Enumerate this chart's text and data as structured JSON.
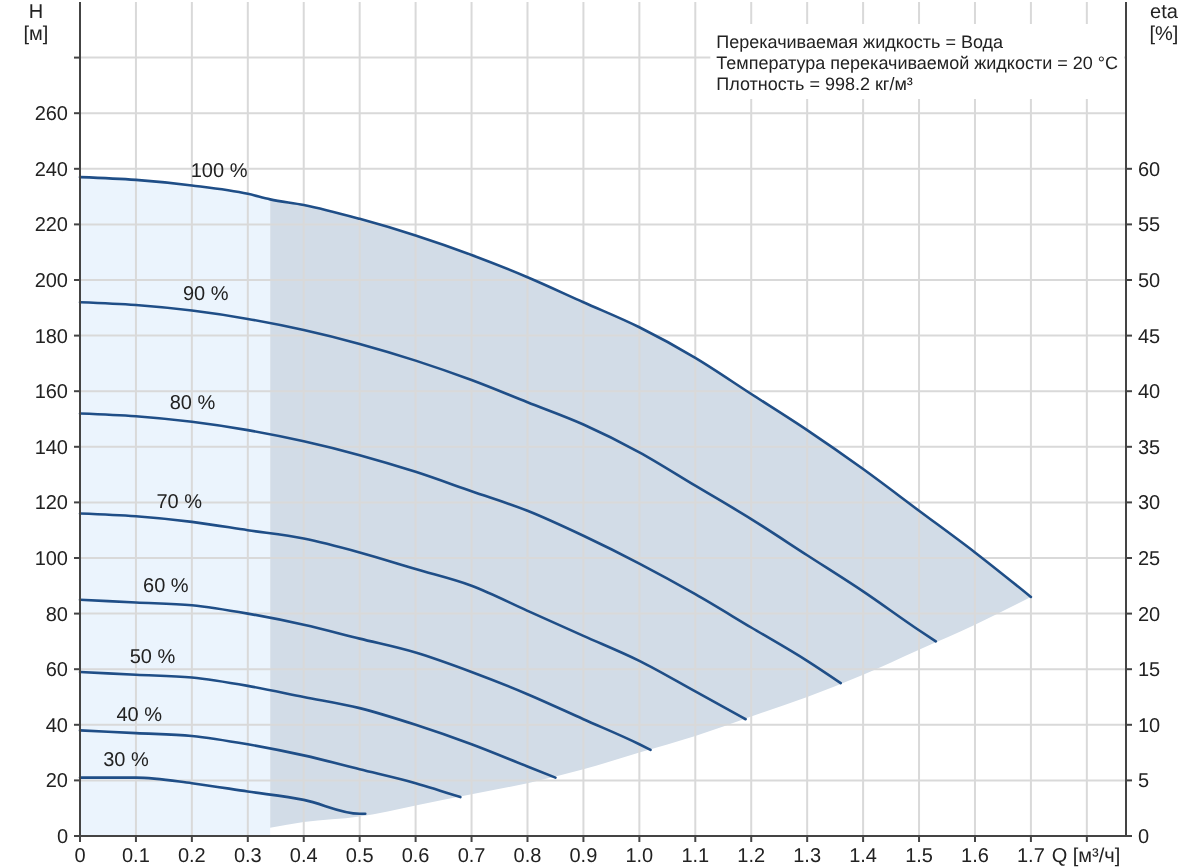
{
  "chart_data": {
    "type": "line",
    "xlabel": "Q [м³/ч]",
    "ylabel": "H\n[м]",
    "y2label": "eta\n[%]",
    "xlim": [
      0,
      1.87
    ],
    "ylim": [
      0,
      300
    ],
    "y2lim": [
      0,
      75
    ],
    "xticks": [
      0,
      0.1,
      0.2,
      0.3,
      0.4,
      0.5,
      0.6,
      0.7,
      0.8,
      0.9,
      {
        "value": 1,
        "label": "1.0"
      },
      1.1,
      1.2,
      1.3,
      1.4,
      1.5,
      1.6,
      1.7,
      {
        "value": 1.8,
        "label": null
      }
    ],
    "yticks": [
      0,
      20,
      40,
      60,
      80,
      100,
      120,
      140,
      160,
      180,
      200,
      220,
      240,
      260,
      {
        "value": 280,
        "label": null
      }
    ],
    "y2ticks": [
      0,
      5,
      10,
      15,
      20,
      25,
      30,
      35,
      40,
      45,
      50,
      55,
      60
    ],
    "grid": true,
    "line_style": "solid",
    "series": [
      {
        "type": "area",
        "color": "#ebf4fd",
        "x": [
          0,
          0.1,
          0.2,
          0.3,
          0.34
        ],
        "values": [
          237,
          236,
          234,
          231,
          229
        ]
      },
      {
        "name": "100 %",
        "color": "#1f4e87",
        "x": [
          0,
          0.1,
          0.2,
          0.3,
          0.34,
          0.4,
          0.5,
          0.6,
          0.7,
          0.8,
          0.9,
          1.0,
          1.1,
          1.2,
          1.3,
          1.4,
          1.5,
          1.6,
          1.7
        ],
        "values": [
          237,
          236,
          234,
          231,
          229,
          227,
          222,
          216,
          209,
          201,
          192,
          183,
          172,
          159,
          146,
          132,
          117,
          102,
          86
        ],
        "lower": [
          null,
          null,
          null,
          null,
          3,
          5,
          7,
          11,
          15,
          19,
          24,
          30,
          36,
          43,
          50,
          58,
          67,
          76,
          86
        ],
        "upper": [
          null,
          null,
          null,
          null,
          229,
          227,
          222,
          216,
          209,
          201,
          192,
          183,
          172,
          159,
          146,
          132,
          117,
          102,
          86
        ]
      },
      {
        "name": "90 %",
        "color": "#1f4e87",
        "x": [
          0,
          0.1,
          0.2,
          0.3,
          0.4,
          0.5,
          0.6,
          0.7,
          0.8,
          0.9,
          1.0,
          1.1,
          1.2,
          1.3,
          1.4,
          1.5,
          1.53
        ],
        "values": [
          192,
          191,
          189,
          186,
          182,
          177,
          171,
          164,
          156,
          148,
          138,
          126,
          114,
          101,
          88,
          74,
          70
        ]
      },
      {
        "name": "80 %",
        "color": "#1f4e87",
        "x": [
          0,
          0.1,
          0.2,
          0.3,
          0.4,
          0.5,
          0.6,
          0.7,
          0.8,
          0.9,
          1.0,
          1.1,
          1.2,
          1.3,
          1.36
        ],
        "values": [
          152,
          151,
          149,
          146,
          142,
          137,
          131,
          124,
          117,
          108,
          98,
          87,
          75,
          63,
          55
        ]
      },
      {
        "name": "70 %",
        "color": "#1f4e87",
        "x": [
          0,
          0.1,
          0.2,
          0.3,
          0.4,
          0.5,
          0.6,
          0.7,
          0.8,
          0.9,
          1.0,
          1.1,
          1.19
        ],
        "values": [
          116,
          115,
          113,
          110,
          107,
          102,
          96,
          90,
          81,
          72,
          63,
          52,
          42
        ]
      },
      {
        "name": "60 %",
        "color": "#1f4e87",
        "x": [
          0,
          0.1,
          0.2,
          0.3,
          0.4,
          0.5,
          0.6,
          0.7,
          0.8,
          0.9,
          1.0,
          1.02
        ],
        "values": [
          85,
          84,
          83,
          80,
          76,
          71,
          66,
          59,
          51,
          42,
          33,
          31
        ]
      },
      {
        "name": "50 %",
        "color": "#1f4e87",
        "x": [
          0,
          0.1,
          0.2,
          0.3,
          0.4,
          0.5,
          0.6,
          0.7,
          0.8,
          0.85
        ],
        "values": [
          59,
          58,
          57,
          54,
          50,
          46,
          40,
          33,
          25,
          21
        ]
      },
      {
        "name": "40 %",
        "color": "#1f4e87",
        "x": [
          0,
          0.1,
          0.2,
          0.3,
          0.4,
          0.5,
          0.6,
          0.68
        ],
        "values": [
          38,
          37,
          36,
          33,
          29,
          24,
          19,
          14
        ]
      },
      {
        "name": "30 %",
        "color": "#1f4e87",
        "x": [
          0,
          0.1,
          0.2,
          0.3,
          0.4,
          0.5,
          0.51
        ],
        "values": [
          21,
          21,
          19,
          16,
          13,
          8,
          8
        ]
      }
    ],
    "annotations": [
      "Перекачиваемая жидкость = Вода",
      "Температура перекачиваемой жидкости = 20 °C",
      "Плотность = 998.2 кг/м³"
    ]
  }
}
